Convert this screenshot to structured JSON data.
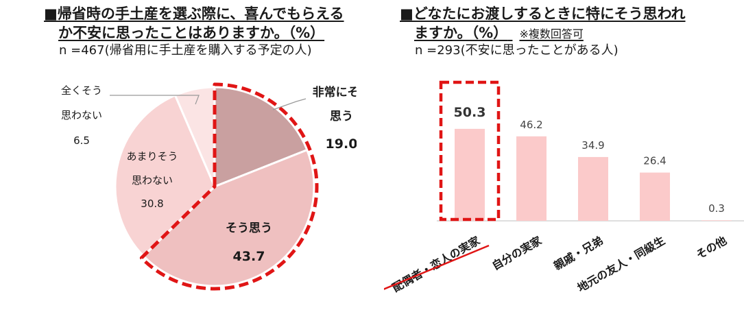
{
  "left": {
    "title_line1": "■帰省時の手土産を選ぶ際に、喜んでもらえる",
    "title_line2": "か不安に思ったことはありますか。（%）",
    "sample": "n =467(帰省用に手土産を購入する予定の人)"
  },
  "right": {
    "title_line1": "■どなたにお渡しするときに特にそう思われ",
    "title_line2": "ますか。（%）",
    "note": "※複数回答可",
    "sample": "n =293(不安に思ったことがある人)"
  },
  "chart_data": [
    {
      "type": "pie",
      "slices": [
        {
          "label_lines": [
            "非常にそう",
            "思う"
          ],
          "value": 19.0,
          "value_text": "19.0",
          "color": "#c9a0a0",
          "highlight": true,
          "bold": true
        },
        {
          "label_lines": [
            "そう思う"
          ],
          "value": 43.7,
          "value_text": "43.7",
          "color": "#efc0c0",
          "highlight": true,
          "bold": true
        },
        {
          "label_lines": [
            "あまりそう",
            "思わない"
          ],
          "value": 30.8,
          "value_text": "30.8",
          "color": "#f8d3d3",
          "highlight": false,
          "bold": false
        },
        {
          "label_lines": [
            "全くそう",
            "思わない"
          ],
          "value": 6.5,
          "value_text": "6.5",
          "color": "#fbe4e4",
          "highlight": false,
          "bold": false
        }
      ]
    },
    {
      "type": "bar",
      "categories": [
        "配偶者・恋人の実家",
        "自分の実家",
        "親戚・兄弟",
        "地元の友人・同級生",
        "その他"
      ],
      "values": [
        50.3,
        46.2,
        34.9,
        26.4,
        0.3
      ],
      "value_texts": [
        "50.3",
        "46.2",
        "34.9",
        "26.4",
        "0.3"
      ],
      "bar_color": "#fbcaca",
      "highlight_color": "#e01515",
      "highlight_index": 0
    }
  ]
}
